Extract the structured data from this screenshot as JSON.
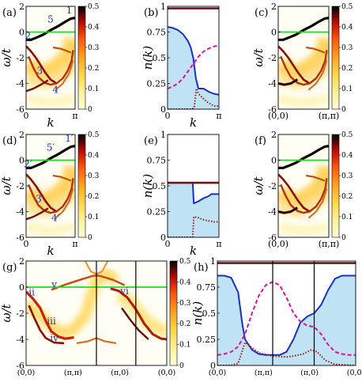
{
  "colors": {
    "background": "#ffffff",
    "fill_blue": "#bfe3f5",
    "line_blue": "#1a2fc4",
    "line_magenta": "#e0109a",
    "line_darkred": "#9b1b1b",
    "line_brown": "#6b1616",
    "green_line": "#22dd22",
    "band_dark": "#0a0000",
    "colorscale": [
      "#fffcd8",
      "#fff29a",
      "#ffd84a",
      "#ffa51e",
      "#ff5e10",
      "#c01006",
      "#000000"
    ]
  },
  "colorbar": {
    "ticks": [
      "0.5",
      "0.4",
      "0.3",
      "0.2",
      "0.1",
      "0"
    ],
    "range": [
      0,
      0.5
    ]
  },
  "chart_data": [
    {
      "panel": "a",
      "type": "heatmap",
      "label": "(a)",
      "ylabel": "ω/t",
      "xlabel": "k",
      "ylim": [
        -6,
        2
      ],
      "yticks": [
        "2",
        "0",
        "-2",
        "-4",
        "-6"
      ],
      "xticks": [
        "0",
        "π"
      ],
      "annotations": [
        "1",
        "2",
        "3",
        "4",
        "5"
      ],
      "fermi_level": 0
    },
    {
      "panel": "b",
      "type": "line",
      "label": "(b)",
      "ylabel": "n(k)",
      "xlabel": "k",
      "ylim": [
        0,
        1
      ],
      "yticks": [
        "1",
        "0.75",
        "0.5",
        "0.25",
        "0"
      ],
      "xticks": [
        "0",
        "π"
      ],
      "series": [
        {
          "style": "solid-blue",
          "x": [
            0,
            0.1,
            0.2,
            0.3,
            0.4,
            0.45,
            0.5,
            0.55,
            0.6,
            0.7,
            0.8,
            0.9,
            1.0
          ],
          "y": [
            0.8,
            0.79,
            0.77,
            0.73,
            0.66,
            0.6,
            0.5,
            0.3,
            0.2,
            0.2,
            0.17,
            0.15,
            0.14
          ]
        },
        {
          "style": "dashed-magenta",
          "x": [
            0,
            0.1,
            0.2,
            0.3,
            0.4,
            0.5,
            0.6,
            0.7,
            0.8,
            0.9,
            1.0
          ],
          "y": [
            0.2,
            0.22,
            0.25,
            0.3,
            0.37,
            0.44,
            0.51,
            0.56,
            0.59,
            0.61,
            0.62
          ]
        },
        {
          "style": "dotted-darkred",
          "x": [
            0,
            0.48,
            0.52,
            0.56,
            0.6,
            0.7,
            0.8,
            0.9,
            1.0
          ],
          "y": [
            0,
            0,
            0.02,
            0.2,
            0.15,
            0.1,
            0.06,
            0.03,
            0.03
          ]
        },
        {
          "style": "solid-brown",
          "x": [
            0,
            1.0
          ],
          "y": [
            0.98,
            0.98
          ]
        }
      ]
    },
    {
      "panel": "c",
      "type": "heatmap",
      "label": "(c)",
      "ylabel": "ω/t",
      "ylim": [
        -6,
        2
      ],
      "yticks": [
        "2",
        "0",
        "-2",
        "-4",
        "-6"
      ],
      "xticks": [
        "(0,0)",
        "(π,π)"
      ],
      "fermi_level": 0
    },
    {
      "panel": "d",
      "type": "heatmap",
      "label": "(d)",
      "ylabel": "ω/t",
      "xlabel": "k",
      "ylim": [
        -6,
        2
      ],
      "yticks": [
        "2",
        "0",
        "-2",
        "-4",
        "-6"
      ],
      "xticks": [
        "0",
        "π"
      ],
      "annotations": [
        "1′",
        "2′",
        "3′",
        "4′",
        "5′"
      ],
      "fermi_level": 0
    },
    {
      "panel": "e",
      "type": "line",
      "label": "(e)",
      "ylabel": "n(k)",
      "xlabel": "k",
      "ylim": [
        0,
        1
      ],
      "yticks": [
        "1",
        "0.75",
        "0.5",
        "0.25",
        "0"
      ],
      "xticks": [
        "0",
        "π"
      ],
      "series": [
        {
          "style": "solid-blue",
          "x": [
            0,
            0.3,
            0.45,
            0.49,
            0.51,
            0.6,
            0.7,
            0.8,
            0.85,
            0.9,
            1.0
          ],
          "y": [
            0.53,
            0.53,
            0.53,
            0.53,
            0.33,
            0.35,
            0.38,
            0.4,
            0.42,
            0.42,
            0.42
          ]
        },
        {
          "style": "dotted-darkred",
          "x": [
            0,
            0.49,
            0.51,
            0.6,
            0.7,
            0.8,
            0.9,
            1.0
          ],
          "y": [
            0,
            0,
            0.2,
            0.19,
            0.17,
            0.16,
            0.15,
            0.15
          ]
        },
        {
          "style": "solid-brown",
          "x": [
            0,
            1.0
          ],
          "y": [
            0.53,
            0.53
          ]
        }
      ]
    },
    {
      "panel": "f",
      "type": "heatmap",
      "label": "(f)",
      "ylabel": "ω/t",
      "ylim": [
        -6,
        2
      ],
      "yticks": [
        "2",
        "0",
        "-2",
        "-4",
        "-6"
      ],
      "xticks": [
        "(0,0)",
        "(π,π)"
      ],
      "fermi_level": 0
    },
    {
      "panel": "g",
      "type": "heatmap",
      "label": "(g)",
      "ylabel": "ω/t",
      "ylim": [
        -6,
        2
      ],
      "yticks": [
        "2",
        "0",
        "-2",
        "-4",
        "-6"
      ],
      "xticks": [
        "(0,0)",
        "(π,π)",
        "(π,0)",
        "(0,0)"
      ],
      "annotations": [
        "i",
        "ii",
        "iii",
        "iv",
        "v",
        "vi"
      ],
      "fermi_level": 0
    },
    {
      "panel": "h",
      "type": "line",
      "label": "(h)",
      "ylabel": "n(k)",
      "ylim": [
        0,
        1
      ],
      "yticks": [
        "1",
        "0.75",
        "0.5",
        "0.25",
        "0"
      ],
      "xticks": [
        "(0,0)",
        "(π,π)",
        "(π,0)",
        "(0,0)"
      ],
      "series": [
        {
          "style": "solid-blue",
          "x": [
            0,
            0.05,
            0.1,
            0.15,
            0.18,
            0.2,
            0.25,
            0.3,
            0.35,
            0.4,
            0.45,
            0.5,
            0.55,
            0.6,
            0.65,
            0.7,
            0.75,
            0.8,
            0.85,
            0.9,
            0.95,
            1.0
          ],
          "y": [
            0.86,
            0.86,
            0.84,
            0.7,
            0.4,
            0.25,
            0.15,
            0.11,
            0.1,
            0.1,
            0.1,
            0.13,
            0.25,
            0.41,
            0.47,
            0.5,
            0.58,
            0.72,
            0.83,
            0.86,
            0.86,
            0.86
          ]
        },
        {
          "style": "dashed-magenta",
          "x": [
            0,
            0.05,
            0.1,
            0.15,
            0.2,
            0.25,
            0.3,
            0.35,
            0.4,
            0.45,
            0.5,
            0.55,
            0.6,
            0.65,
            0.7,
            0.75,
            0.8,
            0.85,
            0.9,
            0.95,
            1.0
          ],
          "y": [
            0.1,
            0.11,
            0.13,
            0.18,
            0.3,
            0.5,
            0.67,
            0.77,
            0.8,
            0.77,
            0.65,
            0.5,
            0.42,
            0.38,
            0.37,
            0.3,
            0.2,
            0.13,
            0.11,
            0.1,
            0.1
          ]
        },
        {
          "style": "dotted-darkred",
          "x": [
            0,
            0.1,
            0.15,
            0.2,
            0.25,
            0.3,
            0.4,
            0.5,
            0.55,
            0.62,
            0.68,
            0.72,
            0.78,
            0.85,
            1.0
          ],
          "y": [
            0,
            0,
            0.02,
            0.22,
            0.17,
            0.12,
            0.09,
            0.08,
            0.09,
            0.11,
            0.15,
            0.13,
            0.05,
            0.01,
            0
          ]
        },
        {
          "style": "solid-brown",
          "x": [
            0,
            1.0
          ],
          "y": [
            0.98,
            0.98
          ]
        }
      ]
    }
  ]
}
